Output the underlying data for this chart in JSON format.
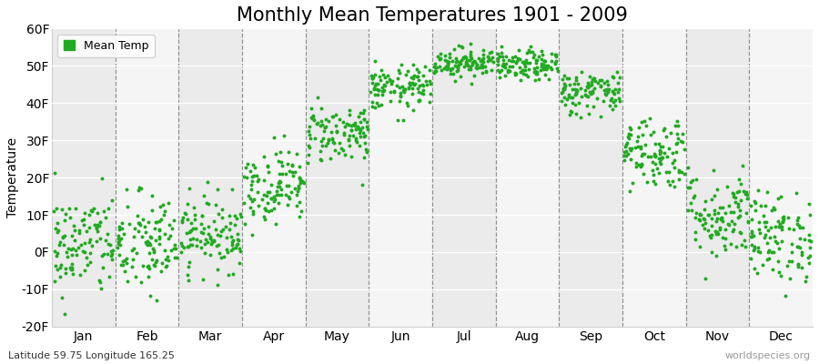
{
  "title": "Monthly Mean Temperatures 1901 - 2009",
  "ylabel": "Temperature",
  "yticks": [
    -20,
    -10,
    0,
    10,
    20,
    30,
    40,
    50,
    60
  ],
  "ytick_labels": [
    "-20F",
    "-10F",
    "0F",
    "10F",
    "20F",
    "30F",
    "40F",
    "50F",
    "60F"
  ],
  "ylim": [
    -20,
    60
  ],
  "month_labels": [
    "Jan",
    "Feb",
    "Mar",
    "Apr",
    "May",
    "Jun",
    "Jul",
    "Aug",
    "Sep",
    "Oct",
    "Nov",
    "Dec"
  ],
  "dot_color": "#22aa22",
  "dot_size": 8,
  "background_color": "#ffffff",
  "band_color_odd": "#ebebeb",
  "band_color_even": "#f5f5f5",
  "title_fontsize": 15,
  "axis_fontsize": 10,
  "tick_fontsize": 10,
  "legend_label": "Mean Temp",
  "footnote_left": "Latitude 59.75 Longitude 165.25",
  "footnote_right": "worldspecies.org",
  "monthly_means": [
    2,
    2,
    5,
    18,
    32,
    44,
    51,
    50,
    43,
    27,
    10,
    4
  ],
  "monthly_std": [
    7,
    7,
    5,
    5,
    4,
    3,
    2,
    2,
    3,
    5,
    6,
    6
  ],
  "n_years": 109
}
